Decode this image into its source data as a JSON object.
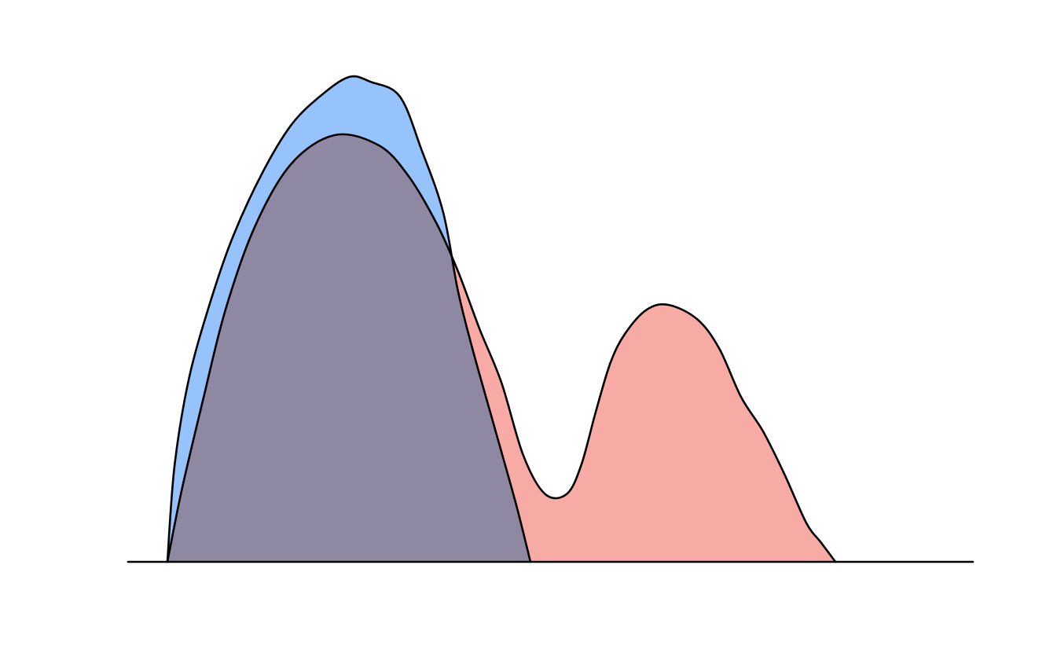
{
  "chart_data": {
    "type": "area",
    "style": "hand-drawn overlapping density curves",
    "grid": false,
    "legend": "none",
    "xlim": [
      0,
      1
    ],
    "ylim": [
      0,
      1
    ],
    "series": [
      {
        "color": "#f8aba4",
        "x": [
          0.0,
          0.02,
          0.05,
          0.08,
          0.12,
          0.17,
          0.23,
          0.29,
          0.33,
          0.37,
          0.4,
          0.43,
          0.46,
          0.49,
          0.52,
          0.55,
          0.57,
          0.59,
          0.61,
          0.63,
          0.66,
          0.69,
          0.73,
          0.76,
          0.79,
          0.82,
          0.85,
          0.88,
          0.9,
          0.92
        ],
        "values": [
          0.0,
          0.15,
          0.34,
          0.52,
          0.69,
          0.82,
          0.88,
          0.86,
          0.8,
          0.7,
          0.6,
          0.48,
          0.37,
          0.22,
          0.14,
          0.14,
          0.2,
          0.31,
          0.41,
          0.47,
          0.52,
          0.53,
          0.5,
          0.44,
          0.34,
          0.27,
          0.18,
          0.08,
          0.04,
          0.0
        ]
      },
      {
        "color": "#96c3fc",
        "x": [
          0.0,
          0.01,
          0.03,
          0.06,
          0.09,
          0.13,
          0.17,
          0.21,
          0.25,
          0.28,
          0.32,
          0.35,
          0.38,
          0.4,
          0.42,
          0.45,
          0.48,
          0.5
        ],
        "values": [
          0.0,
          0.2,
          0.38,
          0.54,
          0.67,
          0.8,
          0.9,
          0.96,
          1.0,
          0.99,
          0.96,
          0.85,
          0.72,
          0.56,
          0.44,
          0.28,
          0.12,
          0.0
        ]
      }
    ],
    "overlap_color": "#8f88a2"
  }
}
